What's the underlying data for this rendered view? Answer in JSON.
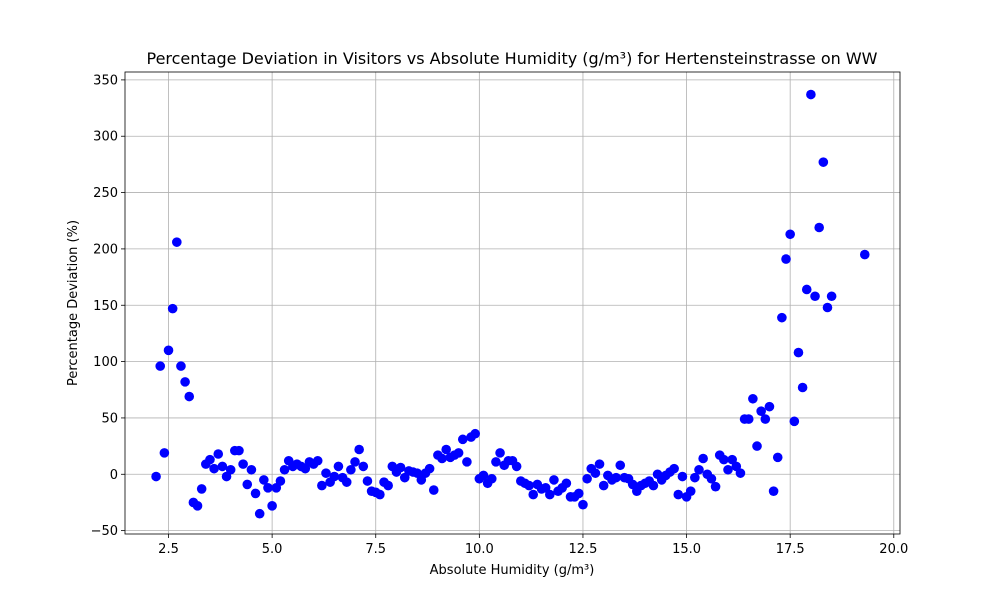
{
  "chart_data": {
    "type": "scatter",
    "title": "Percentage Deviation in Visitors vs Absolute Humidity (g/m³) for Hertensteinstrasse on WW",
    "xlabel": "Absolute Humidity (g/m³)",
    "ylabel": "Percentage Deviation (%)",
    "xlim": [
      1.45,
      20.15
    ],
    "ylim": [
      -53,
      357
    ],
    "xticks": [
      2.5,
      5.0,
      7.5,
      10.0,
      12.5,
      15.0,
      17.5,
      20.0
    ],
    "xtick_labels": [
      "2.5",
      "5.0",
      "7.5",
      "10.0",
      "12.5",
      "15.0",
      "17.5",
      "20.0"
    ],
    "yticks": [
      -50,
      0,
      50,
      100,
      150,
      200,
      250,
      300,
      350
    ],
    "ytick_labels": [
      "−50",
      "0",
      "50",
      "100",
      "150",
      "200",
      "250",
      "300",
      "350"
    ],
    "grid": true,
    "marker_color": "#0000ff",
    "points": [
      [
        2.2,
        -2
      ],
      [
        2.3,
        96
      ],
      [
        2.4,
        19
      ],
      [
        2.5,
        110
      ],
      [
        2.6,
        147
      ],
      [
        2.7,
        206
      ],
      [
        2.8,
        96
      ],
      [
        2.9,
        82
      ],
      [
        3.0,
        69
      ],
      [
        3.1,
        -25
      ],
      [
        3.2,
        -28
      ],
      [
        3.3,
        -13
      ],
      [
        3.4,
        9
      ],
      [
        3.5,
        13
      ],
      [
        3.6,
        5
      ],
      [
        3.7,
        18
      ],
      [
        3.8,
        7
      ],
      [
        3.9,
        -2
      ],
      [
        4.0,
        4
      ],
      [
        4.1,
        21
      ],
      [
        4.2,
        21
      ],
      [
        4.3,
        9
      ],
      [
        4.4,
        -9
      ],
      [
        4.5,
        4
      ],
      [
        4.6,
        -17
      ],
      [
        4.7,
        -35
      ],
      [
        4.8,
        -5
      ],
      [
        4.9,
        -12
      ],
      [
        5.0,
        -28
      ],
      [
        5.1,
        -12
      ],
      [
        5.2,
        -6
      ],
      [
        5.3,
        4
      ],
      [
        5.4,
        12
      ],
      [
        5.5,
        7
      ],
      [
        5.6,
        9
      ],
      [
        5.7,
        7
      ],
      [
        5.8,
        5
      ],
      [
        5.9,
        11
      ],
      [
        6.0,
        9
      ],
      [
        6.1,
        12
      ],
      [
        6.2,
        -10
      ],
      [
        6.3,
        1
      ],
      [
        6.4,
        -7
      ],
      [
        6.5,
        -2
      ],
      [
        6.6,
        7
      ],
      [
        6.7,
        -3
      ],
      [
        6.8,
        -7
      ],
      [
        6.9,
        4
      ],
      [
        7.0,
        11
      ],
      [
        7.1,
        22
      ],
      [
        7.2,
        7
      ],
      [
        7.3,
        -6
      ],
      [
        7.4,
        -15
      ],
      [
        7.5,
        -16
      ],
      [
        7.6,
        -18
      ],
      [
        7.7,
        -7
      ],
      [
        7.8,
        -10
      ],
      [
        7.9,
        7
      ],
      [
        8.0,
        2
      ],
      [
        8.1,
        6
      ],
      [
        8.2,
        -3
      ],
      [
        8.3,
        3
      ],
      [
        8.4,
        2
      ],
      [
        8.5,
        1
      ],
      [
        8.6,
        -5
      ],
      [
        8.7,
        1
      ],
      [
        8.8,
        5
      ],
      [
        8.9,
        -14
      ],
      [
        9.0,
        17
      ],
      [
        9.1,
        14
      ],
      [
        9.2,
        22
      ],
      [
        9.3,
        15
      ],
      [
        9.4,
        17
      ],
      [
        9.5,
        19
      ],
      [
        9.6,
        31
      ],
      [
        9.7,
        11
      ],
      [
        9.8,
        33
      ],
      [
        9.9,
        36
      ],
      [
        10.0,
        -4
      ],
      [
        10.1,
        -1
      ],
      [
        10.2,
        -8
      ],
      [
        10.3,
        -4
      ],
      [
        10.4,
        11
      ],
      [
        10.5,
        19
      ],
      [
        10.6,
        8
      ],
      [
        10.7,
        12
      ],
      [
        10.8,
        12
      ],
      [
        10.9,
        7
      ],
      [
        11.0,
        -6
      ],
      [
        11.1,
        -8
      ],
      [
        11.2,
        -10
      ],
      [
        11.3,
        -18
      ],
      [
        11.4,
        -9
      ],
      [
        11.5,
        -13
      ],
      [
        11.6,
        -12
      ],
      [
        11.7,
        -18
      ],
      [
        11.8,
        -5
      ],
      [
        11.9,
        -15
      ],
      [
        12.0,
        -12
      ],
      [
        12.1,
        -8
      ],
      [
        12.2,
        -20
      ],
      [
        12.3,
        -20
      ],
      [
        12.4,
        -17
      ],
      [
        12.5,
        -27
      ],
      [
        12.6,
        -4
      ],
      [
        12.7,
        5
      ],
      [
        12.8,
        1
      ],
      [
        12.9,
        9
      ],
      [
        13.0,
        -10
      ],
      [
        13.1,
        -1
      ],
      [
        13.2,
        -5
      ],
      [
        13.3,
        -3
      ],
      [
        13.4,
        8
      ],
      [
        13.5,
        -3
      ],
      [
        13.6,
        -4
      ],
      [
        13.7,
        -9
      ],
      [
        13.8,
        -15
      ],
      [
        13.9,
        -10
      ],
      [
        14.0,
        -8
      ],
      [
        14.1,
        -6
      ],
      [
        14.2,
        -10
      ],
      [
        14.3,
        0
      ],
      [
        14.4,
        -5
      ],
      [
        14.5,
        -1
      ],
      [
        14.6,
        2
      ],
      [
        14.7,
        5
      ],
      [
        14.8,
        -18
      ],
      [
        14.9,
        -2
      ],
      [
        15.0,
        -20
      ],
      [
        15.1,
        -15
      ],
      [
        15.2,
        -3
      ],
      [
        15.3,
        4
      ],
      [
        15.4,
        14
      ],
      [
        15.5,
        0
      ],
      [
        15.6,
        -4
      ],
      [
        15.7,
        -11
      ],
      [
        15.8,
        17
      ],
      [
        15.9,
        13
      ],
      [
        16.0,
        4
      ],
      [
        16.1,
        13
      ],
      [
        16.2,
        7
      ],
      [
        16.3,
        1
      ],
      [
        16.4,
        49
      ],
      [
        16.5,
        49
      ],
      [
        16.6,
        67
      ],
      [
        16.7,
        25
      ],
      [
        16.8,
        56
      ],
      [
        16.9,
        49
      ],
      [
        17.0,
        60
      ],
      [
        17.1,
        -15
      ],
      [
        17.2,
        15
      ],
      [
        17.3,
        139
      ],
      [
        17.4,
        191
      ],
      [
        17.5,
        213
      ],
      [
        17.6,
        47
      ],
      [
        17.7,
        108
      ],
      [
        17.8,
        77
      ],
      [
        17.9,
        164
      ],
      [
        18.0,
        337
      ],
      [
        18.1,
        158
      ],
      [
        18.2,
        219
      ],
      [
        18.3,
        277
      ],
      [
        18.4,
        148
      ],
      [
        18.5,
        158
      ],
      [
        19.3,
        195
      ]
    ]
  }
}
